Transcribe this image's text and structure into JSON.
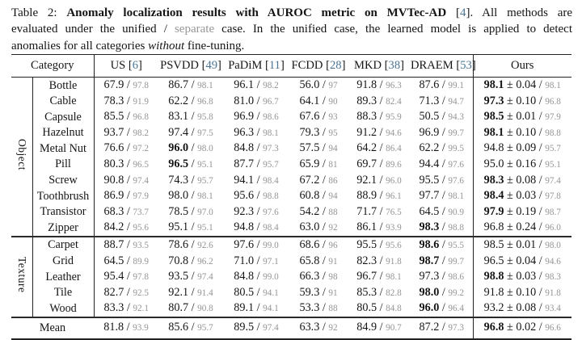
{
  "caption": {
    "line1": {
      "label": "Table 2: ",
      "title": "Anomaly localization results with AUROC metric on MVTec-AD",
      "pre_cite": " [",
      "cite": "4",
      "rest": "]. All methods are"
    },
    "line2": {
      "pre": "evaluated under the unified / ",
      "separate": "separate",
      "rest": " case. In the unified case, the learned model is applied to detect"
    },
    "line3": {
      "pre": "anomalies for all categories ",
      "emph": "without",
      "rest": " fine-tuning."
    }
  },
  "table": {
    "symbols": {
      "slash": "/",
      "plus_minus": "±",
      "bracket_open": "[",
      "bracket_close": "]"
    },
    "colors": {
      "cite_blue": "#4a7596",
      "gray_value": "#949494",
      "text": "#151515"
    },
    "header": {
      "category": "Category",
      "methods": [
        {
          "name": "US",
          "cite": "6"
        },
        {
          "name": "PSVDD",
          "cite": "49"
        },
        {
          "name": "PaDiM",
          "cite": "11"
        },
        {
          "name": "FCDD",
          "cite": "28"
        },
        {
          "name": "MKD",
          "cite": "38"
        },
        {
          "name": "DRAEM",
          "cite": "53"
        }
      ],
      "ours": "Ours"
    },
    "groups": [
      {
        "label": "Object",
        "rows": [
          {
            "category": "Bottle",
            "cells": [
              [
                "67.9",
                "97.8",
                false
              ],
              [
                "86.7",
                "98.1",
                false
              ],
              [
                "96.1",
                "98.2",
                false
              ],
              [
                "56.0",
                "97",
                false
              ],
              [
                "91.8",
                "96.3",
                false
              ],
              [
                "87.6",
                "99.1",
                false
              ]
            ],
            "ours": [
              "98.1",
              "0.04",
              "98.1",
              true
            ]
          },
          {
            "category": "Cable",
            "cells": [
              [
                "78.3",
                "91.9",
                false
              ],
              [
                "62.2",
                "96.8",
                false
              ],
              [
                "81.0",
                "96.7",
                false
              ],
              [
                "64.1",
                "90",
                false
              ],
              [
                "89.3",
                "82.4",
                false
              ],
              [
                "71.3",
                "94.7",
                false
              ]
            ],
            "ours": [
              "97.3",
              "0.10",
              "96.8",
              true
            ]
          },
          {
            "category": "Capsule",
            "cells": [
              [
                "85.5",
                "96.8",
                false
              ],
              [
                "83.1",
                "95.8",
                false
              ],
              [
                "96.9",
                "98.6",
                false
              ],
              [
                "67.6",
                "93",
                false
              ],
              [
                "88.3",
                "95.9",
                false
              ],
              [
                "50.5",
                "94.3",
                false
              ]
            ],
            "ours": [
              "98.5",
              "0.01",
              "97.9",
              true
            ]
          },
          {
            "category": "Hazelnut",
            "cells": [
              [
                "93.7",
                "98.2",
                false
              ],
              [
                "97.4",
                "97.5",
                false
              ],
              [
                "96.3",
                "98.1",
                false
              ],
              [
                "79.3",
                "95",
                false
              ],
              [
                "91.2",
                "94.6",
                false
              ],
              [
                "96.9",
                "99.7",
                false
              ]
            ],
            "ours": [
              "98.1",
              "0.10",
              "98.8",
              true
            ]
          },
          {
            "category": "Metal Nut",
            "cells": [
              [
                "76.6",
                "97.2",
                false
              ],
              [
                "96.0",
                "98.0",
                true
              ],
              [
                "84.8",
                "97.3",
                false
              ],
              [
                "57.5",
                "94",
                false
              ],
              [
                "64.2",
                "86.4",
                false
              ],
              [
                "62.2",
                "99.5",
                false
              ]
            ],
            "ours": [
              "94.8",
              "0.09",
              "95.7",
              false
            ]
          },
          {
            "category": "Pill",
            "cells": [
              [
                "80.3",
                "96.5",
                false
              ],
              [
                "96.5",
                "95.1",
                true
              ],
              [
                "87.7",
                "95.7",
                false
              ],
              [
                "65.9",
                "81",
                false
              ],
              [
                "69.7",
                "89.6",
                false
              ],
              [
                "94.4",
                "97.6",
                false
              ]
            ],
            "ours": [
              "95.0",
              "0.16",
              "95.1",
              false
            ]
          },
          {
            "category": "Screw",
            "cells": [
              [
                "90.8",
                "97.4",
                false
              ],
              [
                "74.3",
                "95.7",
                false
              ],
              [
                "94.1",
                "98.4",
                false
              ],
              [
                "67.2",
                "86",
                false
              ],
              [
                "92.1",
                "96.0",
                false
              ],
              [
                "95.5",
                "97.6",
                false
              ]
            ],
            "ours": [
              "98.3",
              "0.08",
              "97.4",
              true
            ]
          },
          {
            "category": "Toothbrush",
            "cells": [
              [
                "86.9",
                "97.9",
                false
              ],
              [
                "98.0",
                "98.1",
                false
              ],
              [
                "95.6",
                "98.8",
                false
              ],
              [
                "60.8",
                "94",
                false
              ],
              [
                "88.9",
                "96.1",
                false
              ],
              [
                "97.7",
                "98.1",
                false
              ]
            ],
            "ours": [
              "98.4",
              "0.03",
              "97.8",
              true
            ]
          },
          {
            "category": "Transistor",
            "cells": [
              [
                "68.3",
                "73.7",
                false
              ],
              [
                "78.5",
                "97.0",
                false
              ],
              [
                "92.3",
                "97.6",
                false
              ],
              [
                "54.2",
                "88",
                false
              ],
              [
                "71.7",
                "76.5",
                false
              ],
              [
                "64.5",
                "90.9",
                false
              ]
            ],
            "ours": [
              "97.9",
              "0.19",
              "98.7",
              true
            ]
          },
          {
            "category": "Zipper",
            "cells": [
              [
                "84.2",
                "95.6",
                false
              ],
              [
                "95.1",
                "95.1",
                false
              ],
              [
                "94.8",
                "98.4",
                false
              ],
              [
                "63.0",
                "92",
                false
              ],
              [
                "86.1",
                "93.9",
                false
              ],
              [
                "98.3",
                "98.8",
                true
              ]
            ],
            "ours": [
              "96.8",
              "0.24",
              "96.0",
              false
            ]
          }
        ]
      },
      {
        "label": "Texture",
        "rows": [
          {
            "category": "Carpet",
            "cells": [
              [
                "88.7",
                "93.5",
                false
              ],
              [
                "78.6",
                "92.6",
                false
              ],
              [
                "97.6",
                "99.0",
                false
              ],
              [
                "68.6",
                "96",
                false
              ],
              [
                "95.5",
                "95.6",
                false
              ],
              [
                "98.6",
                "95.5",
                true
              ]
            ],
            "ours": [
              "98.5",
              "0.01",
              "98.0",
              false
            ]
          },
          {
            "category": "Grid",
            "cells": [
              [
                "64.5",
                "89.9",
                false
              ],
              [
                "70.8",
                "96.2",
                false
              ],
              [
                "71.0",
                "97.1",
                false
              ],
              [
                "65.8",
                "91",
                false
              ],
              [
                "82.3",
                "91.8",
                false
              ],
              [
                "98.7",
                "99.7",
                true
              ]
            ],
            "ours": [
              "96.5",
              "0.04",
              "94.6",
              false
            ]
          },
          {
            "category": "Leather",
            "cells": [
              [
                "95.4",
                "97.8",
                false
              ],
              [
                "93.5",
                "97.4",
                false
              ],
              [
                "84.8",
                "99.0",
                false
              ],
              [
                "66.3",
                "98",
                false
              ],
              [
                "96.7",
                "98.1",
                false
              ],
              [
                "97.3",
                "98.6",
                false
              ]
            ],
            "ours": [
              "98.8",
              "0.03",
              "98.3",
              true
            ]
          },
          {
            "category": "Tile",
            "cells": [
              [
                "82.7",
                "92.5",
                false
              ],
              [
                "92.1",
                "91.4",
                false
              ],
              [
                "80.5",
                "94.1",
                false
              ],
              [
                "59.3",
                "91",
                false
              ],
              [
                "85.3",
                "82.8",
                false
              ],
              [
                "98.0",
                "99.2",
                true
              ]
            ],
            "ours": [
              "91.8",
              "0.10",
              "91.8",
              false
            ]
          },
          {
            "category": "Wood",
            "cells": [
              [
                "83.3",
                "92.1",
                false
              ],
              [
                "80.7",
                "90.8",
                false
              ],
              [
                "89.1",
                "94.1",
                false
              ],
              [
                "53.3",
                "88",
                false
              ],
              [
                "80.5",
                "84.8",
                false
              ],
              [
                "96.0",
                "96.4",
                true
              ]
            ],
            "ours": [
              "93.2",
              "0.08",
              "93.4",
              false
            ]
          }
        ]
      }
    ],
    "mean": {
      "category": "Mean",
      "cells": [
        [
          "81.8",
          "93.9",
          false
        ],
        [
          "85.6",
          "95.7",
          false
        ],
        [
          "89.5",
          "97.4",
          false
        ],
        [
          "63.3",
          "92",
          false
        ],
        [
          "84.9",
          "90.7",
          false
        ],
        [
          "87.2",
          "97.3",
          false
        ]
      ],
      "ours": [
        "96.8",
        "0.02",
        "96.6",
        true
      ]
    }
  }
}
